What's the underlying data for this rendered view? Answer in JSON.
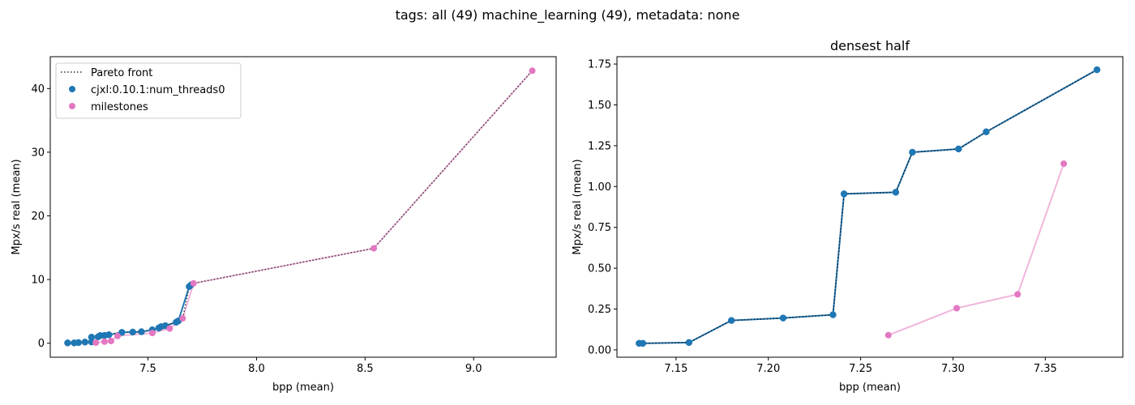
{
  "figure": {
    "suptitle": "tags: all (49) machine_learning (49), metadata: none"
  },
  "chart_data": [
    {
      "type": "scatter",
      "title": "",
      "xlabel": "bpp (mean)",
      "ylabel": "Mpx/s real (mean)",
      "xlim": [
        7.05,
        9.38
      ],
      "ylim": [
        -2.2,
        45
      ],
      "xticks": [
        7.5,
        8.0,
        8.5,
        9.0
      ],
      "yticks": [
        0,
        10,
        20,
        30,
        40
      ],
      "xtick_labels": [
        "7.5",
        "8.0",
        "8.5",
        "9.0"
      ],
      "ytick_labels": [
        "0",
        "10",
        "20",
        "30",
        "40"
      ],
      "legend_position": "upper-left",
      "legend": [
        "Pareto front",
        "cjxl:0.10.1:num_threads0",
        "milestones"
      ],
      "colors": {
        "main": "#1f77b4",
        "milestones": "#e377c2",
        "milestones_line": "#f1b6dc",
        "pareto": "#333333",
        "main_line": "#1f77b4"
      },
      "series": [
        {
          "name": "cjxl:0.10.1:num_threads0",
          "points": [
            [
              7.13,
              0.05
            ],
            [
              7.16,
              0.05
            ],
            [
              7.18,
              0.1
            ],
            [
              7.21,
              0.18
            ],
            [
              7.24,
              0.2
            ],
            [
              7.24,
              0.95
            ],
            [
              7.27,
              1.0
            ],
            [
              7.28,
              1.2
            ],
            [
              7.3,
              1.22
            ],
            [
              7.32,
              1.33
            ],
            [
              7.38,
              1.7
            ],
            [
              7.43,
              1.75
            ],
            [
              7.47,
              1.8
            ],
            [
              7.52,
              2.1
            ],
            [
              7.55,
              2.4
            ],
            [
              7.56,
              2.6
            ],
            [
              7.58,
              2.75
            ],
            [
              7.63,
              3.3
            ],
            [
              7.64,
              3.5
            ],
            [
              7.69,
              8.9
            ],
            [
              7.7,
              9.2
            ]
          ]
        },
        {
          "name": "milestones",
          "points": [
            [
              7.26,
              0.09
            ],
            [
              7.3,
              0.25
            ],
            [
              7.33,
              0.34
            ],
            [
              7.36,
              1.14
            ],
            [
              7.52,
              1.6
            ],
            [
              7.6,
              2.3
            ],
            [
              7.66,
              3.9
            ],
            [
              7.71,
              9.4
            ],
            [
              8.54,
              14.9
            ],
            [
              9.27,
              42.8
            ]
          ]
        }
      ]
    },
    {
      "type": "scatter",
      "title": "densest half",
      "xlabel": "bpp (mean)",
      "ylabel": "Mpx/s real (mean)",
      "xlim": [
        7.118,
        7.392
      ],
      "ylim": [
        -0.045,
        1.795
      ],
      "xticks": [
        7.15,
        7.2,
        7.25,
        7.3,
        7.35
      ],
      "yticks": [
        0.0,
        0.25,
        0.5,
        0.75,
        1.0,
        1.25,
        1.5,
        1.75
      ],
      "xtick_labels": [
        "7.15",
        "7.20",
        "7.25",
        "7.30",
        "7.35"
      ],
      "ytick_labels": [
        "0.00",
        "0.25",
        "0.50",
        "0.75",
        "1.00",
        "1.25",
        "1.50",
        "1.75"
      ],
      "colors": {
        "main": "#1f77b4",
        "milestones": "#e377c2",
        "milestones_line": "#f1b6dc",
        "pareto": "#1a1a1a",
        "main_line": "#1f77b4"
      },
      "series": [
        {
          "name": "cjxl:0.10.1:num_threads0",
          "points": [
            [
              7.13,
              0.04
            ],
            [
              7.132,
              0.04
            ],
            [
              7.157,
              0.045
            ],
            [
              7.18,
              0.18
            ],
            [
              7.208,
              0.195
            ],
            [
              7.235,
              0.215
            ],
            [
              7.241,
              0.955
            ],
            [
              7.269,
              0.965
            ],
            [
              7.278,
              1.21
            ],
            [
              7.303,
              1.23
            ],
            [
              7.318,
              1.335
            ],
            [
              7.378,
              1.715
            ]
          ]
        },
        {
          "name": "milestones",
          "points": [
            [
              7.265,
              0.09
            ],
            [
              7.302,
              0.255
            ],
            [
              7.335,
              0.34
            ],
            [
              7.36,
              1.14
            ]
          ]
        }
      ]
    }
  ]
}
